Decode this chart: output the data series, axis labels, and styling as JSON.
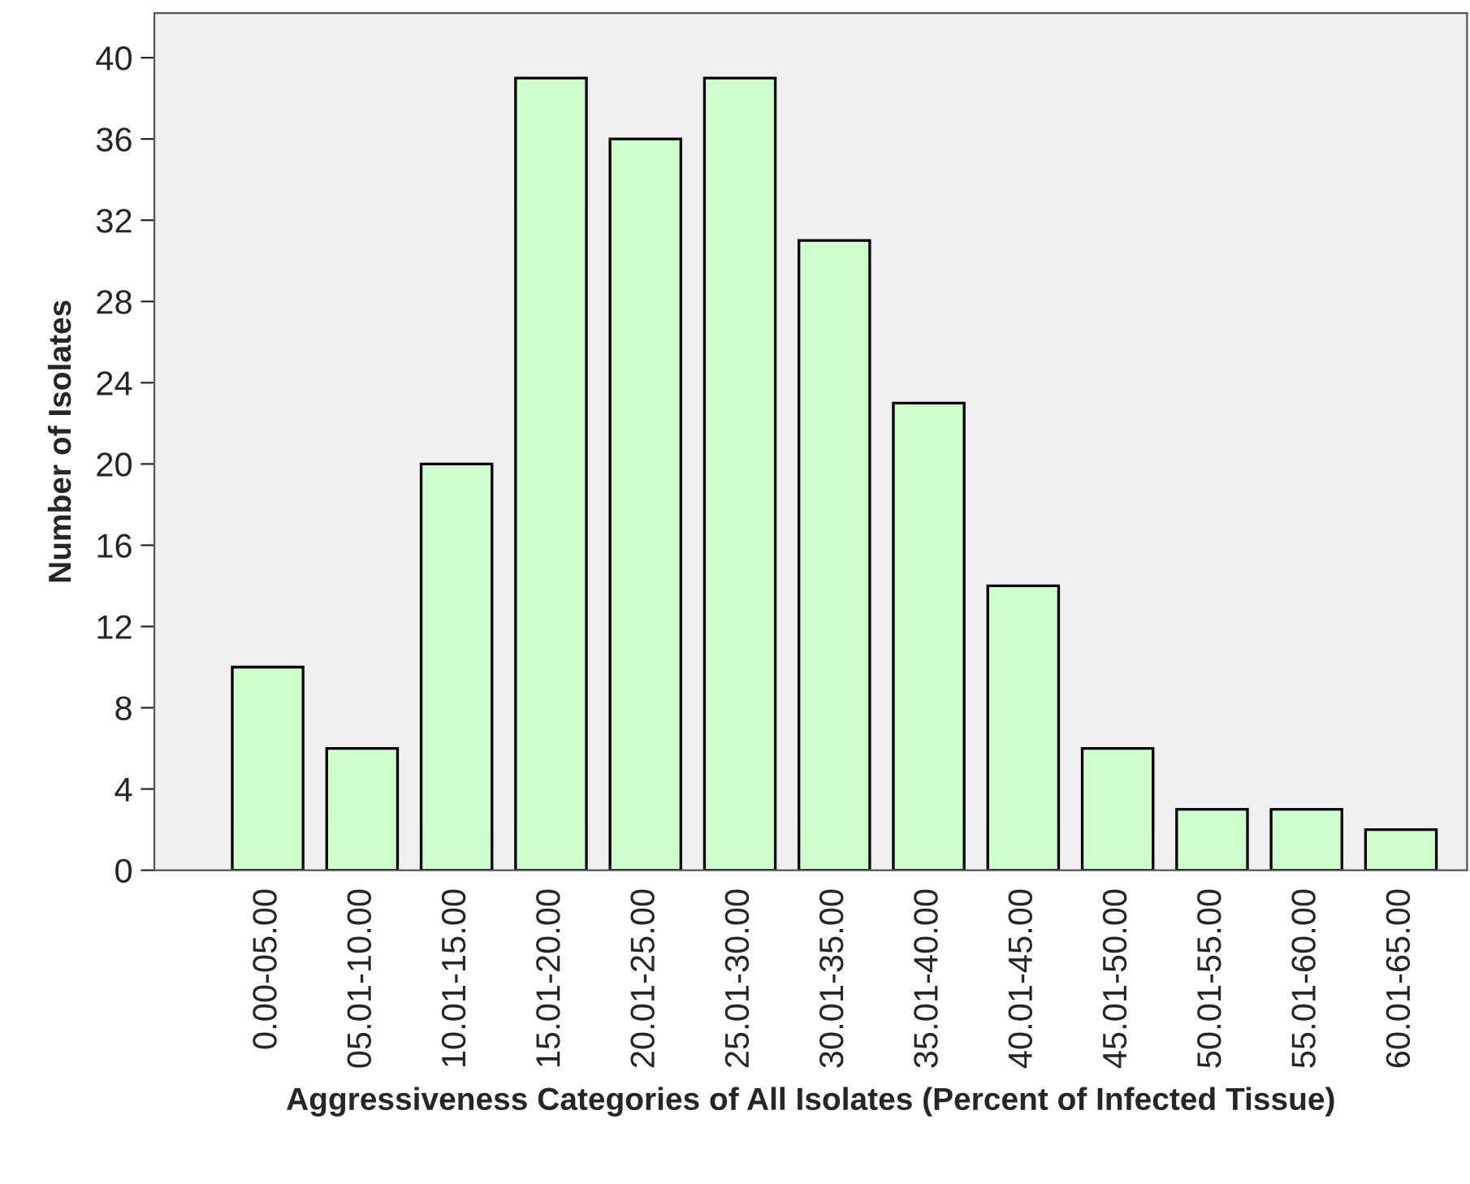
{
  "chart_data": {
    "type": "bar",
    "xlabel": "Aggressiveness Categories of All Isolates (Percent of Infected Tissue)",
    "ylabel": "Number of Isolates",
    "categories": [
      "0.00-05.00",
      "05.01-10.00",
      "10.01-15.00",
      "15.01-20.00",
      "20.01-25.00",
      "25.01-30.00",
      "30.01-35.00",
      "35.01-40.00",
      "40.01-45.00",
      "45.01-50.00",
      "50.01-55.00",
      "55.01-60.00",
      "60.01-65.00"
    ],
    "values": [
      10,
      6,
      20,
      39,
      36,
      39,
      31,
      23,
      14,
      6,
      3,
      3,
      2
    ],
    "color": "#ccffcc",
    "ylim": [
      0,
      42.2
    ],
    "yticks": [
      0,
      4,
      8,
      12,
      16,
      20,
      24,
      28,
      32,
      36,
      40
    ],
    "grid": false,
    "legend": false
  }
}
